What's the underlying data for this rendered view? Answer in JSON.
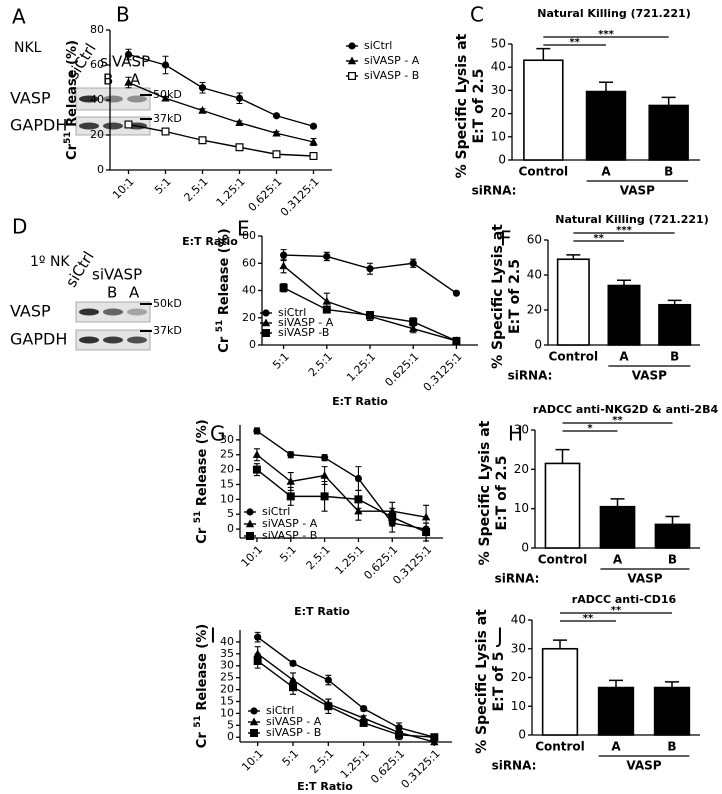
{
  "chart_data": [
    {
      "type": "line",
      "panel_label": "B",
      "ylabel": {
        "base": "Cr",
        "sup": "51",
        "rest": " Release (%)"
      },
      "xlabel": "E:T Ratio",
      "categories": [
        "10:1",
        "5:1",
        "2.5:1",
        "1.25:1",
        "0.625:1",
        "0.3125:1"
      ],
      "ylim": [
        0,
        80
      ],
      "yticks": [
        0,
        20,
        40,
        60,
        80
      ],
      "series": [
        {
          "name": "siCtrl",
          "color": "#000000",
          "marker": "circle",
          "values": [
            66,
            60,
            47,
            41,
            31,
            25
          ],
          "errors": [
            3,
            5,
            3,
            3,
            1,
            1
          ]
        },
        {
          "name": "siVASP - A",
          "color": "#000000",
          "marker": "triangle",
          "values": [
            50,
            41,
            34,
            27,
            21,
            16
          ],
          "errors": [
            3,
            1,
            1,
            1,
            1,
            2
          ]
        },
        {
          "name": "siVASP - B",
          "color": "#000000",
          "marker": "open-square",
          "values": [
            26,
            22,
            17,
            13,
            9,
            8
          ],
          "errors": [
            1,
            1,
            1,
            1,
            1,
            1
          ]
        }
      ]
    },
    {
      "type": "bar",
      "panel_label": "C",
      "title": "Natural  Killing (721.221)",
      "ylabel": [
        "% Specific Lysis at",
        "E:T of 2.5"
      ],
      "categories": [
        "Control",
        "A",
        "B"
      ],
      "values": [
        43,
        29.5,
        23.5
      ],
      "errors": [
        5,
        4,
        3.5
      ],
      "colors": [
        "#ffffff",
        "#000000",
        "#000000"
      ],
      "ylim": [
        0,
        50
      ],
      "yticks": [
        0,
        10,
        20,
        30,
        40,
        50
      ],
      "group_label": "siRNA:",
      "group_name": "VASP",
      "significance": [
        "**",
        "***"
      ]
    },
    {
      "type": "line",
      "panel_label": "E",
      "ylabel": {
        "base": "Cr ",
        "sup": "51",
        "rest": " Release (%)"
      },
      "xlabel": "E:T Ratio",
      "categories": [
        "5:1",
        "2.5:1",
        "1.25:1",
        "0.625:1",
        "0.3125:1"
      ],
      "ylim": [
        0,
        80
      ],
      "yticks": [
        0,
        20,
        40,
        60,
        80
      ],
      "series": [
        {
          "name": "siCtrl",
          "color": "#000000",
          "marker": "circle",
          "values": [
            66,
            65,
            56,
            60,
            38
          ],
          "errors": [
            4,
            3,
            4,
            3,
            1
          ]
        },
        {
          "name": "siVASP - A",
          "color": "#000000",
          "marker": "triangle",
          "values": [
            58,
            32,
            21,
            12,
            3
          ],
          "errors": [
            5,
            6,
            3,
            3,
            1
          ]
        },
        {
          "name": "siVASP -B",
          "color": "#000000",
          "marker": "square",
          "values": [
            42,
            26,
            22,
            17,
            3
          ],
          "errors": [
            3,
            2,
            2,
            3,
            1
          ]
        }
      ]
    },
    {
      "type": "bar",
      "panel_label": "F",
      "title": "Natural  Killing (721.221)",
      "ylabel": [
        "% Specific Lysis at",
        "E:T of 2.5"
      ],
      "categories": [
        "Control",
        "A",
        "B"
      ],
      "values": [
        49,
        34,
        23
      ],
      "errors": [
        2.5,
        3,
        2.5
      ],
      "colors": [
        "#ffffff",
        "#000000",
        "#000000"
      ],
      "ylim": [
        0,
        60
      ],
      "yticks": [
        0,
        20,
        40,
        60
      ],
      "group_label": "siRNA:",
      "group_name": "VASP",
      "significance": [
        "**",
        "***"
      ]
    },
    {
      "type": "line",
      "panel_label": "G",
      "ylabel": {
        "base": "Cr ",
        "sup": "51",
        "rest": " Release (%)"
      },
      "xlabel": "E:T Ratio",
      "categories": [
        "10:1",
        "5:1",
        "2.5:1",
        "1.25:1",
        "0.625:1",
        "0.3125:1"
      ],
      "ylim": [
        -3,
        35
      ],
      "yticks": [
        0,
        5,
        10,
        15,
        20,
        25,
        30
      ],
      "series": [
        {
          "name": "siCtrl",
          "color": "#000000",
          "marker": "circle",
          "values": [
            33,
            25,
            24,
            17,
            2,
            0
          ],
          "errors": [
            1,
            1,
            1,
            4,
            3,
            2
          ]
        },
        {
          "name": "siVASP - A",
          "color": "#000000",
          "marker": "triangle",
          "values": [
            25,
            16,
            18,
            6,
            6,
            4
          ],
          "errors": [
            2,
            3,
            3,
            3,
            3,
            4
          ]
        },
        {
          "name": "siVASP - B",
          "color": "#000000",
          "marker": "square",
          "values": [
            20,
            11,
            11,
            10,
            4,
            -1
          ],
          "errors": [
            2,
            3,
            5,
            3,
            3,
            3
          ]
        }
      ]
    },
    {
      "type": "bar",
      "panel_label": "H",
      "title": "rADCC anti-NKG2D  & anti-2B4",
      "ylabel": [
        "% Specific Lysis at",
        "E:T of 2.5"
      ],
      "categories": [
        "Control",
        "A",
        "B"
      ],
      "values": [
        21.5,
        10.5,
        6
      ],
      "errors": [
        3.5,
        2,
        2
      ],
      "colors": [
        "#ffffff",
        "#000000",
        "#000000"
      ],
      "ylim": [
        0,
        30
      ],
      "yticks": [
        0,
        10,
        20,
        30
      ],
      "group_label": "siRNA:",
      "group_name": "VASP",
      "significance": [
        "*",
        "**"
      ]
    },
    {
      "type": "line",
      "panel_label": "I",
      "ylabel": {
        "base": "Cr ",
        "sup": "51",
        "rest": " Release (%)"
      },
      "xlabel": "E:T Ratio",
      "categories": [
        "10:1",
        "5:1",
        "2.5:1",
        "1.25:1",
        "0.625:1",
        "0.3125:1"
      ],
      "ylim": [
        -2,
        45
      ],
      "yticks": [
        0,
        5,
        10,
        15,
        20,
        25,
        30,
        35,
        40
      ],
      "series": [
        {
          "name": "siCtrl",
          "color": "#000000",
          "marker": "circle",
          "values": [
            42,
            31,
            24,
            12,
            4,
            0
          ],
          "errors": [
            2,
            1,
            2,
            1,
            2,
            1
          ]
        },
        {
          "name": "siVASP - A",
          "color": "#000000",
          "marker": "triangle",
          "values": [
            35,
            24,
            14,
            8,
            2,
            -2
          ],
          "errors": [
            3,
            3,
            2,
            1,
            2,
            1
          ]
        },
        {
          "name": "siVASP - B",
          "color": "#000000",
          "marker": "square",
          "values": [
            32,
            21,
            13,
            6,
            1,
            0
          ],
          "errors": [
            3,
            3,
            3,
            1,
            2,
            1
          ]
        }
      ]
    },
    {
      "type": "bar",
      "panel_label": "J",
      "title": "rADCC anti-CD16",
      "ylabel": [
        "% Specific Lysis at",
        "E:T of 5"
      ],
      "categories": [
        "Control",
        "A",
        "B"
      ],
      "values": [
        30,
        16.5,
        16.5
      ],
      "errors": [
        3,
        2.5,
        2
      ],
      "colors": [
        "#ffffff",
        "#000000",
        "#000000"
      ],
      "ylim": [
        0,
        40
      ],
      "yticks": [
        0,
        10,
        20,
        30,
        40
      ],
      "group_label": "siRNA:",
      "group_name": "VASP",
      "significance": [
        "**",
        "**"
      ]
    }
  ],
  "blots": [
    {
      "panel_label": "A",
      "cells": "NKL",
      "control": "siCtrl",
      "group": "siVASP",
      "lanes": [
        "B",
        "A"
      ],
      "rows": [
        "VASP",
        "GAPDH"
      ],
      "markers": [
        "50kD",
        "37kD"
      ]
    },
    {
      "panel_label": "D",
      "cells": "1º NK",
      "control": "siCtrl",
      "group": "siVASP",
      "lanes": [
        "B",
        "A"
      ],
      "rows": [
        "VASP",
        "GAPDH"
      ],
      "markers": [
        "50kD",
        "37kD"
      ]
    }
  ]
}
